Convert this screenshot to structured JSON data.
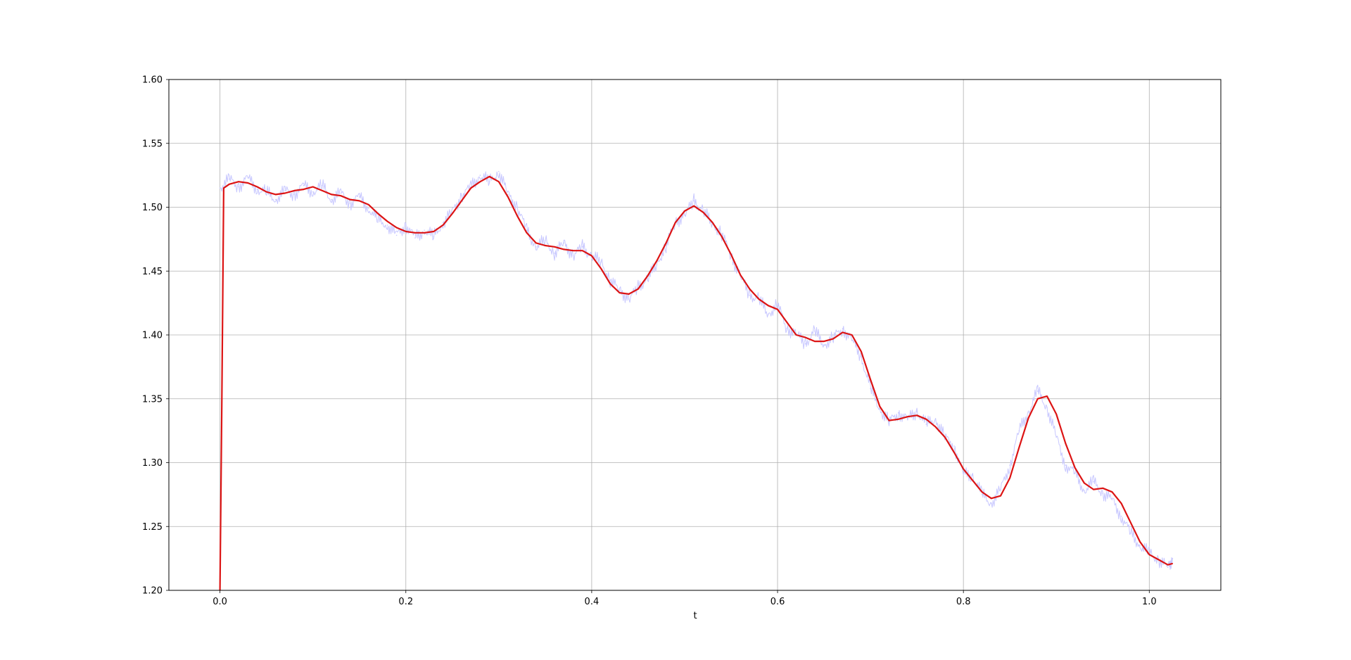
{
  "chart_data": {
    "type": "line",
    "title": "",
    "xlabel": "t",
    "ylabel": "",
    "xlim": [
      -0.055,
      1.077
    ],
    "ylim": [
      1.2,
      1.6
    ],
    "grid": true,
    "x_ticks": [
      {
        "value": 0.0,
        "label": "0.0"
      },
      {
        "value": 0.2,
        "label": "0.2"
      },
      {
        "value": 0.4,
        "label": "0.4"
      },
      {
        "value": 0.6,
        "label": "0.6"
      },
      {
        "value": 0.8,
        "label": "0.8"
      },
      {
        "value": 1.0,
        "label": "1.0"
      }
    ],
    "y_ticks": [
      {
        "value": 1.2,
        "label": "1.20"
      },
      {
        "value": 1.25,
        "label": "1.25"
      },
      {
        "value": 1.3,
        "label": "1.30"
      },
      {
        "value": 1.35,
        "label": "1.35"
      },
      {
        "value": 1.4,
        "label": "1.40"
      },
      {
        "value": 1.45,
        "label": "1.45"
      },
      {
        "value": 1.5,
        "label": "1.50"
      },
      {
        "value": 1.55,
        "label": "1.55"
      },
      {
        "value": 1.6,
        "label": "1.60"
      }
    ],
    "series": [
      {
        "color": "#c8c8ff",
        "style": "raw-noisy",
        "x": [
          0.0,
          0.01,
          0.02,
          0.03,
          0.04,
          0.05,
          0.06,
          0.07,
          0.08,
          0.09,
          0.1,
          0.11,
          0.12,
          0.13,
          0.14,
          0.15,
          0.16,
          0.17,
          0.18,
          0.19,
          0.2,
          0.21,
          0.22,
          0.23,
          0.24,
          0.25,
          0.26,
          0.27,
          0.28,
          0.29,
          0.3,
          0.31,
          0.32,
          0.33,
          0.34,
          0.35,
          0.36,
          0.37,
          0.38,
          0.39,
          0.4,
          0.41,
          0.42,
          0.43,
          0.44,
          0.45,
          0.46,
          0.47,
          0.48,
          0.49,
          0.5,
          0.51,
          0.52,
          0.53,
          0.54,
          0.55,
          0.56,
          0.57,
          0.58,
          0.59,
          0.6,
          0.61,
          0.62,
          0.63,
          0.64,
          0.65,
          0.66,
          0.67,
          0.68,
          0.69,
          0.7,
          0.71,
          0.72,
          0.73,
          0.74,
          0.75,
          0.76,
          0.77,
          0.78,
          0.79,
          0.8,
          0.81,
          0.82,
          0.83,
          0.84,
          0.85,
          0.86,
          0.87,
          0.88,
          0.89,
          0.9,
          0.91,
          0.92,
          0.93,
          0.94,
          0.95,
          0.96,
          0.97,
          0.98,
          0.99,
          1.0,
          1.01,
          1.02,
          1.025
        ],
        "y": [
          1.515,
          1.522,
          1.516,
          1.523,
          1.514,
          1.512,
          1.506,
          1.513,
          1.51,
          1.517,
          1.512,
          1.517,
          1.506,
          1.511,
          1.503,
          1.508,
          1.499,
          1.49,
          1.486,
          1.478,
          1.486,
          1.476,
          1.482,
          1.477,
          1.488,
          1.496,
          1.509,
          1.516,
          1.525,
          1.52,
          1.528,
          1.51,
          1.5,
          1.482,
          1.469,
          1.474,
          1.464,
          1.472,
          1.462,
          1.469,
          1.462,
          1.457,
          1.443,
          1.435,
          1.428,
          1.437,
          1.444,
          1.455,
          1.47,
          1.488,
          1.494,
          1.505,
          1.497,
          1.487,
          1.479,
          1.462,
          1.446,
          1.431,
          1.428,
          1.416,
          1.424,
          1.405,
          1.401,
          1.393,
          1.403,
          1.392,
          1.398,
          1.405,
          1.396,
          1.383,
          1.358,
          1.342,
          1.332,
          1.339,
          1.334,
          1.34,
          1.33,
          1.334,
          1.32,
          1.313,
          1.291,
          1.29,
          1.275,
          1.268,
          1.279,
          1.298,
          1.325,
          1.34,
          1.356,
          1.343,
          1.32,
          1.298,
          1.292,
          1.278,
          1.285,
          1.276,
          1.271,
          1.258,
          1.245,
          1.235,
          1.229,
          1.224,
          1.218,
          1.225
        ]
      },
      {
        "color": "#dc1414",
        "style": "smoothed",
        "x": [
          0.0,
          0.002,
          0.004,
          0.01,
          0.02,
          0.03,
          0.04,
          0.05,
          0.06,
          0.07,
          0.08,
          0.09,
          0.1,
          0.11,
          0.12,
          0.13,
          0.14,
          0.15,
          0.16,
          0.17,
          0.18,
          0.19,
          0.2,
          0.21,
          0.22,
          0.23,
          0.24,
          0.25,
          0.26,
          0.27,
          0.28,
          0.29,
          0.3,
          0.31,
          0.32,
          0.33,
          0.34,
          0.35,
          0.36,
          0.37,
          0.38,
          0.39,
          0.4,
          0.41,
          0.42,
          0.43,
          0.44,
          0.45,
          0.46,
          0.47,
          0.48,
          0.49,
          0.5,
          0.51,
          0.52,
          0.53,
          0.54,
          0.55,
          0.56,
          0.57,
          0.58,
          0.59,
          0.6,
          0.61,
          0.62,
          0.63,
          0.64,
          0.65,
          0.66,
          0.67,
          0.68,
          0.69,
          0.7,
          0.71,
          0.72,
          0.73,
          0.74,
          0.75,
          0.76,
          0.77,
          0.78,
          0.79,
          0.8,
          0.81,
          0.82,
          0.83,
          0.84,
          0.85,
          0.86,
          0.87,
          0.88,
          0.89,
          0.9,
          0.91,
          0.92,
          0.93,
          0.94,
          0.95,
          0.96,
          0.97,
          0.98,
          0.99,
          1.0,
          1.01,
          1.02,
          1.025
        ],
        "y": [
          1.2,
          1.35,
          1.515,
          1.518,
          1.52,
          1.519,
          1.516,
          1.512,
          1.51,
          1.511,
          1.513,
          1.514,
          1.516,
          1.513,
          1.51,
          1.509,
          1.506,
          1.505,
          1.502,
          1.495,
          1.489,
          1.484,
          1.481,
          1.48,
          1.48,
          1.481,
          1.486,
          1.495,
          1.505,
          1.515,
          1.52,
          1.524,
          1.52,
          1.508,
          1.493,
          1.48,
          1.472,
          1.47,
          1.469,
          1.467,
          1.466,
          1.466,
          1.462,
          1.452,
          1.44,
          1.433,
          1.432,
          1.436,
          1.446,
          1.458,
          1.472,
          1.488,
          1.497,
          1.501,
          1.496,
          1.488,
          1.477,
          1.463,
          1.447,
          1.436,
          1.428,
          1.423,
          1.42,
          1.41,
          1.4,
          1.398,
          1.395,
          1.395,
          1.397,
          1.402,
          1.4,
          1.387,
          1.365,
          1.344,
          1.333,
          1.334,
          1.336,
          1.337,
          1.334,
          1.328,
          1.32,
          1.308,
          1.295,
          1.286,
          1.277,
          1.272,
          1.274,
          1.288,
          1.312,
          1.335,
          1.35,
          1.352,
          1.338,
          1.315,
          1.296,
          1.284,
          1.279,
          1.28,
          1.277,
          1.268,
          1.253,
          1.238,
          1.228,
          1.224,
          1.22,
          1.221
        ]
      }
    ]
  }
}
